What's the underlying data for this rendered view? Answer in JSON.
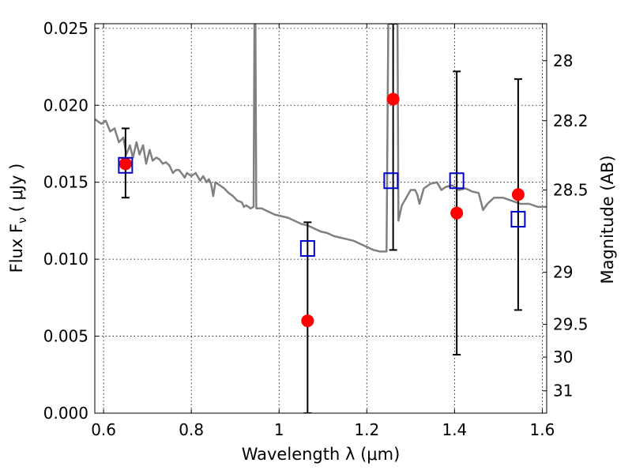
{
  "chart_data": {
    "type": "scatter",
    "xlabel": "Wavelength  λ (μm)",
    "ylabel": "Flux  F",
    "ylabel_sub": "ν",
    "ylabel_unit": "  ( μJy )",
    "ylabel_right": "Magnitude (AB)",
    "xlim": [
      0.58,
      1.61
    ],
    "ylim": [
      0.0,
      0.0253
    ],
    "x_ticks": [
      0.6,
      0.8,
      1.0,
      1.2,
      1.4,
      1.6
    ],
    "x_tick_labels": [
      "0.6",
      "0.8",
      "1",
      "1.2",
      "1.4",
      "1.6"
    ],
    "y_ticks": [
      0.0,
      0.005,
      0.01,
      0.015,
      0.02,
      0.025
    ],
    "y_tick_labels": [
      "0.000",
      "0.005",
      "0.010",
      "0.015",
      "0.020",
      "0.025"
    ],
    "right_ticks": [
      {
        "label": "28",
        "flux": 0.0229
      },
      {
        "label": "28.2",
        "flux": 0.019
      },
      {
        "label": "28.5",
        "flux": 0.0145
      },
      {
        "label": "29",
        "flux": 0.00915
      },
      {
        "label": "29.5",
        "flux": 0.00577
      },
      {
        "label": "30",
        "flux": 0.00364
      },
      {
        "label": "31",
        "flux": 0.00145
      }
    ],
    "grid": true,
    "grid_style": "dotted",
    "series": [
      {
        "kind": "line",
        "color": "#808080",
        "points": [
          [
            0.58,
            0.0191
          ],
          [
            0.595,
            0.0188
          ],
          [
            0.605,
            0.019
          ],
          [
            0.615,
            0.0183
          ],
          [
            0.625,
            0.0185
          ],
          [
            0.635,
            0.0176
          ],
          [
            0.645,
            0.0179
          ],
          [
            0.652,
            0.0168
          ],
          [
            0.66,
            0.0174
          ],
          [
            0.667,
            0.0166
          ],
          [
            0.675,
            0.0176
          ],
          [
            0.682,
            0.0168
          ],
          [
            0.69,
            0.0174
          ],
          [
            0.697,
            0.0162
          ],
          [
            0.705,
            0.0171
          ],
          [
            0.712,
            0.0164
          ],
          [
            0.72,
            0.0166
          ],
          [
            0.727,
            0.0165
          ],
          [
            0.735,
            0.0162
          ],
          [
            0.742,
            0.0163
          ],
          [
            0.75,
            0.0161
          ],
          [
            0.758,
            0.0156
          ],
          [
            0.765,
            0.0158
          ],
          [
            0.772,
            0.0158
          ],
          [
            0.78,
            0.0155
          ],
          [
            0.785,
            0.0153
          ],
          [
            0.79,
            0.0156
          ],
          [
            0.8,
            0.0154
          ],
          [
            0.81,
            0.0156
          ],
          [
            0.82,
            0.0151
          ],
          [
            0.827,
            0.0154
          ],
          [
            0.835,
            0.015
          ],
          [
            0.84,
            0.0152
          ],
          [
            0.845,
            0.0149
          ],
          [
            0.85,
            0.0141
          ],
          [
            0.855,
            0.015
          ],
          [
            0.865,
            0.0148
          ],
          [
            0.875,
            0.0146
          ],
          [
            0.885,
            0.0143
          ],
          [
            0.895,
            0.0141
          ],
          [
            0.905,
            0.0138
          ],
          [
            0.915,
            0.0137
          ],
          [
            0.92,
            0.0134
          ],
          [
            0.925,
            0.0135
          ],
          [
            0.935,
            0.0133
          ],
          [
            0.942,
            0.0134
          ],
          [
            0.944,
            0.0253
          ],
          [
            0.946,
            0.0253
          ],
          [
            0.948,
            0.0133
          ],
          [
            0.96,
            0.0133
          ],
          [
            0.975,
            0.0131
          ],
          [
            0.99,
            0.0129
          ],
          [
            1.005,
            0.0128
          ],
          [
            1.02,
            0.0127
          ],
          [
            1.035,
            0.0125
          ],
          [
            1.05,
            0.0123
          ],
          [
            1.065,
            0.0122
          ],
          [
            1.08,
            0.012
          ],
          [
            1.095,
            0.0118
          ],
          [
            1.11,
            0.0117
          ],
          [
            1.125,
            0.0115
          ],
          [
            1.14,
            0.0114
          ],
          [
            1.155,
            0.0113
          ],
          [
            1.17,
            0.0112
          ],
          [
            1.185,
            0.011
          ],
          [
            1.2,
            0.0108
          ],
          [
            1.215,
            0.0106
          ],
          [
            1.23,
            0.0105
          ],
          [
            1.245,
            0.0105
          ],
          [
            1.249,
            0.0253
          ],
          [
            1.27,
            0.0253
          ],
          [
            1.272,
            0.0125
          ],
          [
            1.28,
            0.0135
          ],
          [
            1.29,
            0.014
          ],
          [
            1.3,
            0.0145
          ],
          [
            1.31,
            0.0145
          ],
          [
            1.315,
            0.0142
          ],
          [
            1.32,
            0.0136
          ],
          [
            1.33,
            0.0146
          ],
          [
            1.345,
            0.0149
          ],
          [
            1.36,
            0.015
          ],
          [
            1.37,
            0.0145
          ],
          [
            1.38,
            0.0147
          ],
          [
            1.395,
            0.0148
          ],
          [
            1.41,
            0.0145
          ],
          [
            1.425,
            0.0146
          ],
          [
            1.44,
            0.0144
          ],
          [
            1.455,
            0.0143
          ],
          [
            1.465,
            0.0132
          ],
          [
            1.475,
            0.0136
          ],
          [
            1.49,
            0.014
          ],
          [
            1.51,
            0.014
          ],
          [
            1.53,
            0.0138
          ],
          [
            1.55,
            0.0136
          ],
          [
            1.57,
            0.0136
          ],
          [
            1.59,
            0.0134
          ],
          [
            1.61,
            0.0134
          ]
        ]
      },
      {
        "kind": "points",
        "marker": "circle",
        "color": "#ff0000",
        "x": [
          0.65,
          1.065,
          1.26,
          1.405,
          1.545
        ],
        "y": [
          0.0162,
          0.006,
          0.0204,
          0.013,
          0.0142
        ],
        "yerr_low": [
          0.014,
          0.0,
          0.0106,
          0.0038,
          0.0067
        ],
        "yerr_high": [
          0.0185,
          0.0124,
          0.0253,
          0.0222,
          0.0217
        ]
      },
      {
        "kind": "points",
        "marker": "open-square",
        "color": "#0000cc",
        "x": [
          0.65,
          1.065,
          1.255,
          1.405,
          1.545
        ],
        "y": [
          0.0161,
          0.0107,
          0.0151,
          0.0151,
          0.0126
        ]
      }
    ]
  }
}
